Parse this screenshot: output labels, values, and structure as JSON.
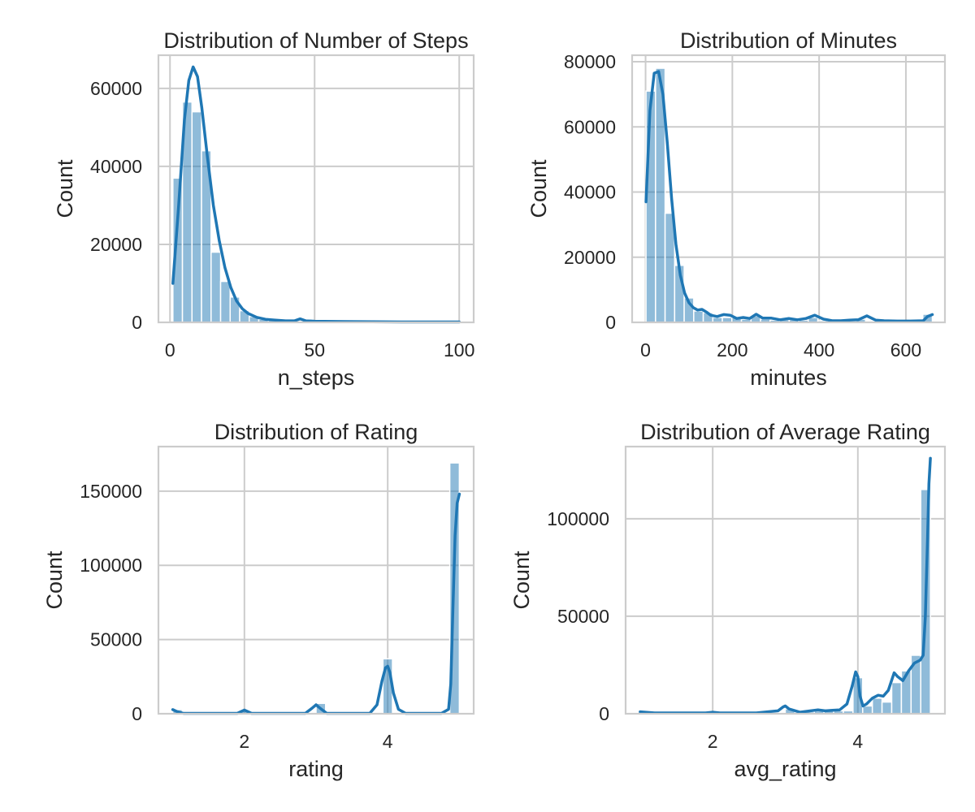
{
  "chart_data": [
    {
      "type": "bar",
      "title": "Distribution of Number of Steps",
      "xlabel": "n_steps",
      "ylabel": "Count",
      "xlim": [
        -4,
        105
      ],
      "ylim": [
        0,
        68500
      ],
      "xticks": [
        0,
        50,
        100
      ],
      "yticks": [
        0,
        20000,
        40000,
        60000
      ],
      "grid": true,
      "bin_edges": [
        1,
        4.3,
        7.6,
        10.9,
        14.2,
        17.5,
        20.8,
        24.1,
        27.4,
        30.7,
        34,
        37.3,
        40.6,
        43.9,
        47.2,
        50.5,
        53.8,
        57.1,
        60.4,
        63.7,
        67,
        70.3,
        73.6,
        76.9,
        80.2,
        83.5,
        86.8,
        90.1,
        93.4,
        96.7,
        100
      ],
      "values": [
        37000,
        56500,
        54000,
        44000,
        18000,
        10500,
        6500,
        3000,
        1500,
        800,
        500,
        300,
        300,
        200,
        150,
        100,
        80,
        60,
        50,
        40,
        30,
        30,
        30,
        20,
        20,
        20,
        20,
        20,
        20,
        20
      ],
      "kde": {
        "x": [
          1,
          3,
          5,
          6.5,
          8,
          9.5,
          11,
          13,
          15,
          17,
          19,
          21,
          23,
          25,
          27,
          30,
          33,
          36,
          40,
          43,
          45,
          47,
          50,
          60,
          70,
          80,
          90,
          100
        ],
        "y": [
          10000,
          30000,
          52000,
          62000,
          65500,
          63000,
          55000,
          42000,
          30000,
          21000,
          14000,
          9000,
          5500,
          3500,
          2300,
          1300,
          800,
          600,
          400,
          400,
          900,
          400,
          300,
          200,
          150,
          100,
          100,
          100
        ]
      }
    },
    {
      "type": "bar",
      "title": "Distribution of Minutes",
      "xlabel": "minutes",
      "ylabel": "Count",
      "xlim": [
        -31,
        690
      ],
      "ylim": [
        0,
        82000
      ],
      "xticks": [
        0,
        200,
        400,
        600
      ],
      "yticks": [
        0,
        20000,
        40000,
        60000,
        80000
      ],
      "grid": true,
      "bin_edges": [
        1,
        23,
        45,
        67,
        89,
        111,
        133,
        155,
        177,
        199,
        221,
        243,
        265,
        287,
        309,
        331,
        353,
        375,
        397,
        419,
        441,
        463,
        485,
        507,
        529,
        551,
        573,
        595,
        617,
        639,
        661
      ],
      "values": [
        71000,
        78000,
        33500,
        17500,
        7500,
        3500,
        3000,
        1500,
        1500,
        1500,
        1000,
        2000,
        1000,
        700,
        900,
        800,
        700,
        1500,
        500,
        400,
        500,
        400,
        1000,
        300,
        200,
        200,
        200,
        200,
        200,
        2500
      ],
      "kde": {
        "x": [
          1,
          10,
          20,
          30,
          40,
          50,
          60,
          70,
          80,
          90,
          100,
          110,
          120,
          130,
          140,
          150,
          165,
          180,
          195,
          210,
          225,
          240,
          255,
          270,
          290,
          310,
          330,
          350,
          370,
          390,
          410,
          430,
          450,
          470,
          490,
          510,
          530,
          550,
          580,
          610,
          640,
          650,
          661
        ],
        "y": [
          37000,
          65000,
          76500,
          77000,
          70000,
          55000,
          38000,
          24000,
          14500,
          9000,
          6000,
          4500,
          3800,
          4000,
          3200,
          2200,
          1800,
          2400,
          2200,
          1200,
          1500,
          1200,
          2500,
          1300,
          1300,
          800,
          1200,
          800,
          1200,
          2200,
          1000,
          500,
          500,
          700,
          800,
          2000,
          700,
          500,
          400,
          400,
          500,
          1800,
          2400
        ]
      }
    },
    {
      "type": "bar",
      "title": "Distribution of Rating",
      "xlabel": "rating",
      "ylabel": "Count",
      "xlim": [
        0.8,
        5.2
      ],
      "ylim": [
        0,
        180000
      ],
      "xticks": [
        2,
        4
      ],
      "yticks": [
        0,
        50000,
        100000,
        150000
      ],
      "grid": true,
      "bin_edges": [
        1,
        1.1333,
        1.2667,
        1.4,
        1.5333,
        1.6667,
        1.8,
        1.9333,
        2.0667,
        2.2,
        2.3333,
        2.4667,
        2.6,
        2.7333,
        2.8667,
        3,
        3.1333,
        3.2667,
        3.4,
        3.5333,
        3.6667,
        3.8,
        3.9333,
        4.0667,
        4.2,
        4.3333,
        4.4667,
        4.6,
        4.7333,
        4.8667,
        5
      ],
      "values": [
        2800,
        0,
        0,
        0,
        0,
        0,
        0,
        2500,
        0,
        0,
        0,
        0,
        0,
        0,
        0,
        7000,
        0,
        0,
        0,
        0,
        0,
        0,
        37000,
        0,
        0,
        0,
        0,
        0,
        0,
        169000
      ],
      "kde": {
        "x": [
          1,
          1.06,
          1.15,
          1.9,
          2,
          2.1,
          2.85,
          2.95,
          3.0,
          3.05,
          3.15,
          3.75,
          3.85,
          3.92,
          3.97,
          4.0,
          4.03,
          4.08,
          4.15,
          4.25,
          4.75,
          4.85,
          4.88,
          4.91,
          4.94,
          4.97,
          5.0
        ],
        "y": [
          2800,
          1500,
          300,
          300,
          2500,
          300,
          300,
          4000,
          6000,
          4000,
          300,
          300,
          6000,
          22000,
          31000,
          32000,
          28000,
          14000,
          3000,
          300,
          300,
          3000,
          20000,
          70000,
          120000,
          142000,
          148000
        ]
      }
    },
    {
      "type": "bar",
      "title": "Distribution of Average Rating",
      "xlabel": "avg_rating",
      "ylabel": "Count",
      "xlim": [
        0.8,
        5.2
      ],
      "ylim": [
        0,
        137000
      ],
      "xticks": [
        2,
        4
      ],
      "yticks": [
        0,
        50000,
        100000
      ],
      "grid": true,
      "bin_edges": [
        1,
        1.1333,
        1.2667,
        1.4,
        1.5333,
        1.6667,
        1.8,
        1.9333,
        2.0667,
        2.2,
        2.3333,
        2.4667,
        2.6,
        2.7333,
        2.8667,
        3,
        3.1333,
        3.2667,
        3.4,
        3.5333,
        3.6667,
        3.8,
        3.9333,
        4.0667,
        4.2,
        4.3333,
        4.4667,
        4.6,
        4.7333,
        4.8667,
        5
      ],
      "values": [
        1000,
        200,
        200,
        200,
        200,
        200,
        200,
        700,
        200,
        300,
        300,
        400,
        400,
        500,
        700,
        2500,
        800,
        1000,
        1500,
        1500,
        1500,
        1500,
        18500,
        4000,
        8000,
        6000,
        16000,
        22000,
        30000,
        115000
      ],
      "kde": {
        "x": [
          1,
          1.2,
          1.6,
          1.9,
          2.0,
          2.1,
          2.6,
          2.9,
          2.97,
          3.0,
          3.05,
          3.2,
          3.35,
          3.45,
          3.55,
          3.65,
          3.75,
          3.85,
          3.92,
          3.97,
          4.0,
          4.03,
          4.07,
          4.12,
          4.2,
          4.28,
          4.35,
          4.42,
          4.5,
          4.55,
          4.62,
          4.7,
          4.78,
          4.86,
          4.9,
          4.93,
          4.96,
          4.98,
          5.0
        ],
        "y": [
          1000,
          400,
          400,
          400,
          800,
          400,
          400,
          1500,
          3500,
          4000,
          2500,
          800,
          1500,
          2000,
          1500,
          1800,
          2000,
          5000,
          14000,
          21500,
          19000,
          9000,
          4000,
          5000,
          8000,
          9500,
          9000,
          12000,
          21000,
          19000,
          17000,
          22000,
          26000,
          27500,
          30000,
          50000,
          90000,
          118000,
          131000
        ]
      }
    }
  ]
}
